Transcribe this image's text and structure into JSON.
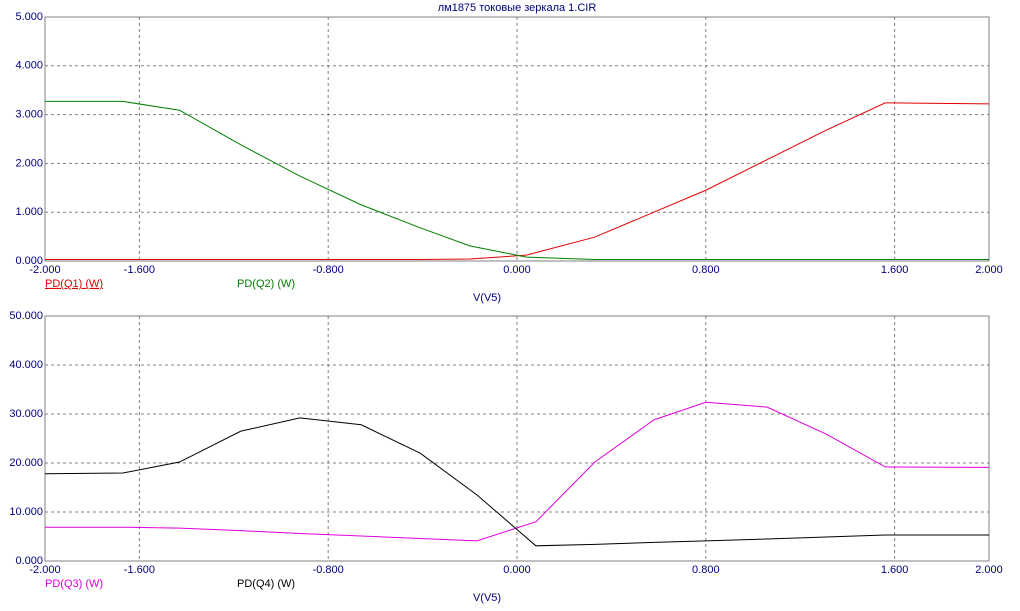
{
  "chart_data": [
    {
      "type": "line",
      "title": "лм1875 токовые зеркала 1.CIR",
      "x_label": "V(V5)",
      "grid": true,
      "x": [
        -2,
        -1.67,
        -1.43,
        -1.17,
        -0.92,
        -0.66,
        -0.41,
        -0.2,
        0.04,
        0.33,
        0.8,
        1.31,
        1.56,
        2
      ],
      "series": [
        {
          "name": "PD(Q1) (W)",
          "color": "#e00000",
          "values": [
            0.03,
            0.03,
            0.03,
            0.03,
            0.03,
            0.03,
            0.03,
            0.04,
            0.12,
            0.49,
            1.45,
            2.68,
            3.24,
            3.22
          ]
        },
        {
          "name": "PD(Q2) (W)",
          "color": "#008000",
          "values": [
            3.27,
            3.27,
            3.09,
            2.38,
            1.74,
            1.15,
            0.68,
            0.31,
            0.08,
            0.03,
            0.03,
            0.03,
            0.03,
            0.03
          ]
        }
      ],
      "xlim": [
        -2,
        2
      ],
      "xticks": [
        {
          "value": -2,
          "label": "-2.000"
        },
        {
          "value": -1.6,
          "label": "-1.600"
        },
        {
          "value": -0.8,
          "label": "-0.800"
        },
        {
          "value": 0,
          "label": "0.000"
        },
        {
          "value": 0.8,
          "label": "0.800"
        },
        {
          "value": 1.6,
          "label": "1.600"
        },
        {
          "value": 2,
          "label": "2.000"
        }
      ],
      "ylim": [
        0,
        5
      ],
      "yticks": [
        {
          "value": 0,
          "label": "0.000"
        },
        {
          "value": 1,
          "label": "1.000"
        },
        {
          "value": 2,
          "label": "2.000"
        },
        {
          "value": 3,
          "label": "3.000"
        },
        {
          "value": 4,
          "label": "4.000"
        },
        {
          "value": 5,
          "label": "5.000"
        }
      ]
    },
    {
      "type": "line",
      "x_label": "V(V5)",
      "grid": true,
      "x": [
        -2,
        -1.67,
        -1.43,
        -1.17,
        -0.92,
        -0.66,
        -0.41,
        -0.17,
        0.08,
        0.33,
        0.58,
        0.8,
        1.06,
        1.31,
        1.56,
        2
      ],
      "series": [
        {
          "name": "PD(Q3) (W)",
          "color": "#e000e0",
          "values": [
            6.9,
            6.9,
            6.7,
            6.2,
            5.6,
            5.1,
            4.6,
            4.1,
            8.0,
            20.2,
            28.8,
            32.4,
            31.4,
            25.9,
            19.2,
            19.1
          ]
        },
        {
          "name": "PD(Q4) (W)",
          "color": "#000000",
          "values": [
            17.8,
            17.96,
            20.2,
            26.5,
            29.2,
            27.8,
            22.0,
            13.5,
            3.1,
            3.4,
            3.8,
            4.1,
            4.5,
            4.9,
            5.3,
            5.3
          ]
        }
      ],
      "xlim": [
        -2,
        2
      ],
      "xticks": [
        {
          "value": -2,
          "label": "-2.000"
        },
        {
          "value": -1.6,
          "label": "-1.600"
        },
        {
          "value": -0.8,
          "label": "-0.800"
        },
        {
          "value": 0,
          "label": "0.000"
        },
        {
          "value": 0.8,
          "label": "0.800"
        },
        {
          "value": 1.6,
          "label": "1.600"
        },
        {
          "value": 2,
          "label": "2.000"
        }
      ],
      "ylim": [
        0,
        50
      ],
      "yticks": [
        {
          "value": 0,
          "label": "0.000"
        },
        {
          "value": 10,
          "label": "10.000"
        },
        {
          "value": 20,
          "label": "20.000"
        },
        {
          "value": 30,
          "label": "30.000"
        },
        {
          "value": 40,
          "label": "40.000"
        },
        {
          "value": 50,
          "label": "50.000"
        }
      ]
    }
  ]
}
